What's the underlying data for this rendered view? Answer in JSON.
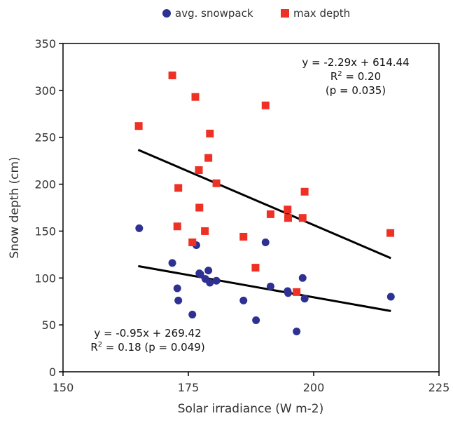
{
  "chart_data": {
    "type": "scatter",
    "xlabel": "Solar irradiance (W m-2)",
    "ylabel": "Snow depth (cm)",
    "xlim": [
      150,
      225
    ],
    "ylim": [
      0,
      350
    ],
    "xticks": [
      150,
      175,
      200,
      225
    ],
    "yticks": [
      0,
      50,
      100,
      150,
      200,
      250,
      300,
      350
    ],
    "grid": false,
    "legend_position": "top-center",
    "series": [
      {
        "name": "avg. snowpack",
        "marker": "circle",
        "color": "#2e3192",
        "points": [
          [
            165.2,
            153
          ],
          [
            171.8,
            116
          ],
          [
            172.8,
            89
          ],
          [
            173.0,
            76
          ],
          [
            175.8,
            61
          ],
          [
            176.6,
            135
          ],
          [
            177.2,
            105
          ],
          [
            177.4,
            104
          ],
          [
            178.4,
            99
          ],
          [
            179.0,
            108
          ],
          [
            179.3,
            95
          ],
          [
            180.6,
            97
          ],
          [
            186.0,
            76
          ],
          [
            188.5,
            55
          ],
          [
            190.4,
            138
          ],
          [
            191.4,
            91
          ],
          [
            194.8,
            86
          ],
          [
            194.9,
            84
          ],
          [
            196.6,
            43
          ],
          [
            197.8,
            100
          ],
          [
            198.2,
            78
          ],
          [
            215.4,
            80
          ]
        ]
      },
      {
        "name": "max depth",
        "marker": "square",
        "color": "#ee3124",
        "points": [
          [
            165.1,
            262
          ],
          [
            171.8,
            316
          ],
          [
            172.8,
            155
          ],
          [
            173.0,
            196
          ],
          [
            175.8,
            138
          ],
          [
            176.4,
            293
          ],
          [
            177.1,
            215
          ],
          [
            177.2,
            175
          ],
          [
            178.3,
            150
          ],
          [
            179.0,
            228
          ],
          [
            179.3,
            254
          ],
          [
            180.6,
            201
          ],
          [
            186.0,
            144
          ],
          [
            188.4,
            111
          ],
          [
            190.4,
            284
          ],
          [
            191.4,
            168
          ],
          [
            194.8,
            173
          ],
          [
            194.9,
            164
          ],
          [
            196.6,
            85
          ],
          [
            197.8,
            164
          ],
          [
            198.2,
            192
          ],
          [
            215.3,
            148
          ]
        ]
      }
    ],
    "trendlines": [
      {
        "series": "max depth",
        "slope": -2.29,
        "intercept": 614.44,
        "x_range": [
          165,
          215.4
        ],
        "equation": "y = -2.29x + 614.44",
        "r2_prefix": "R",
        "r2_exp": "2",
        "r2_value": " = 0.20",
        "p_text": "(p = 0.035)"
      },
      {
        "series": "avg. snowpack",
        "slope": -0.95,
        "intercept": 269.42,
        "x_range": [
          165,
          215.4
        ],
        "equation": "y = -0.95x + 269.42",
        "r2_prefix": "R",
        "r2_exp": "2",
        "r2_value": " = 0.18 (p = 0.049)"
      }
    ]
  }
}
